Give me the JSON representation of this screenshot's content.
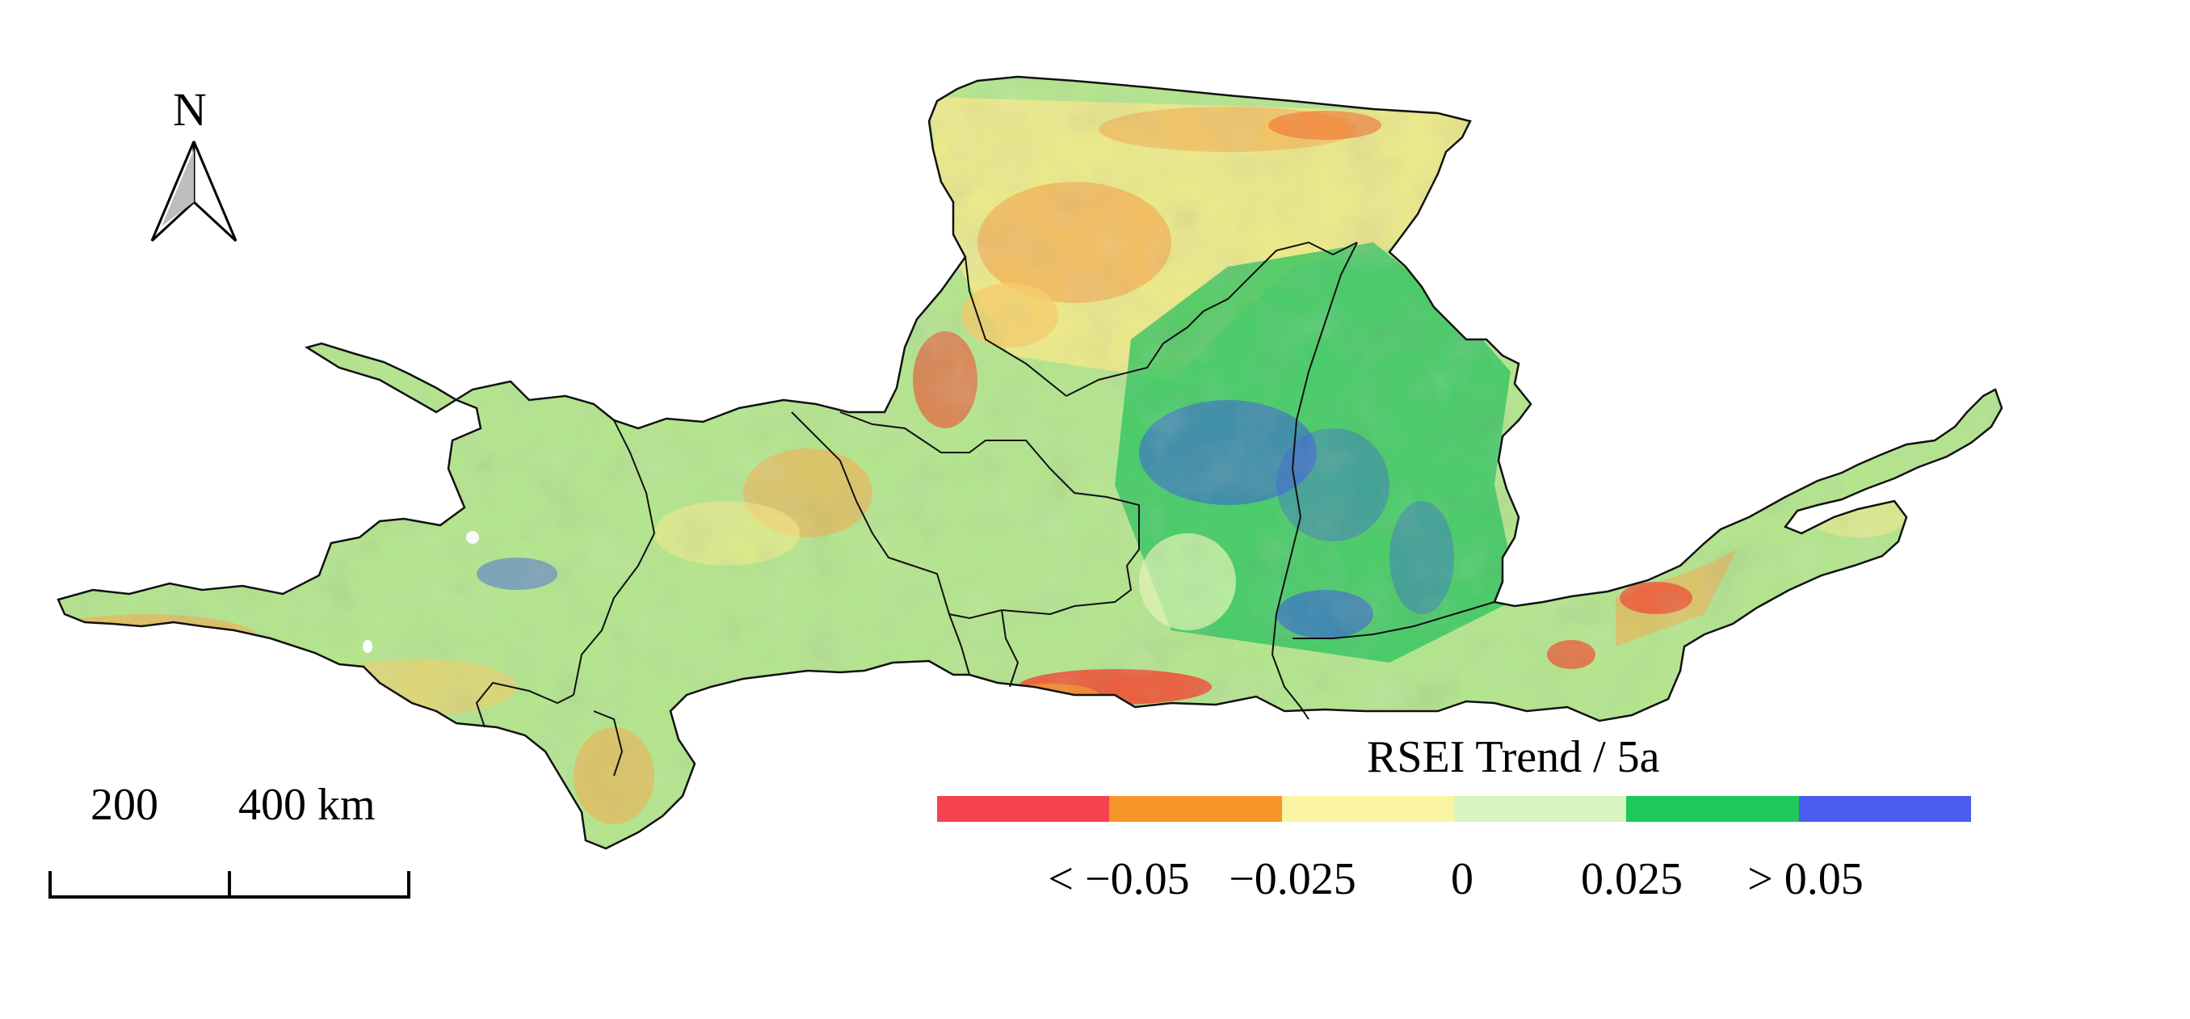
{
  "map": {
    "north_arrow_label": "N",
    "scale_bar": {
      "mid_label": "200",
      "end_label": "400 km"
    },
    "legend": {
      "title": "RSEI  Trend / 5a",
      "classes": [
        {
          "name": "strong-decline",
          "color": "#f4424e"
        },
        {
          "name": "decline",
          "color": "#f7952a"
        },
        {
          "name": "slight-decline",
          "color": "#fbf5a3"
        },
        {
          "name": "slight-increase",
          "color": "#d9f5c0"
        },
        {
          "name": "increase",
          "color": "#1fc85a"
        },
        {
          "name": "strong-increase",
          "color": "#4b5cf0"
        }
      ],
      "ticks": [
        "< −0.05",
        "−0.025",
        "0",
        "0.025",
        "> 0.05"
      ]
    }
  }
}
